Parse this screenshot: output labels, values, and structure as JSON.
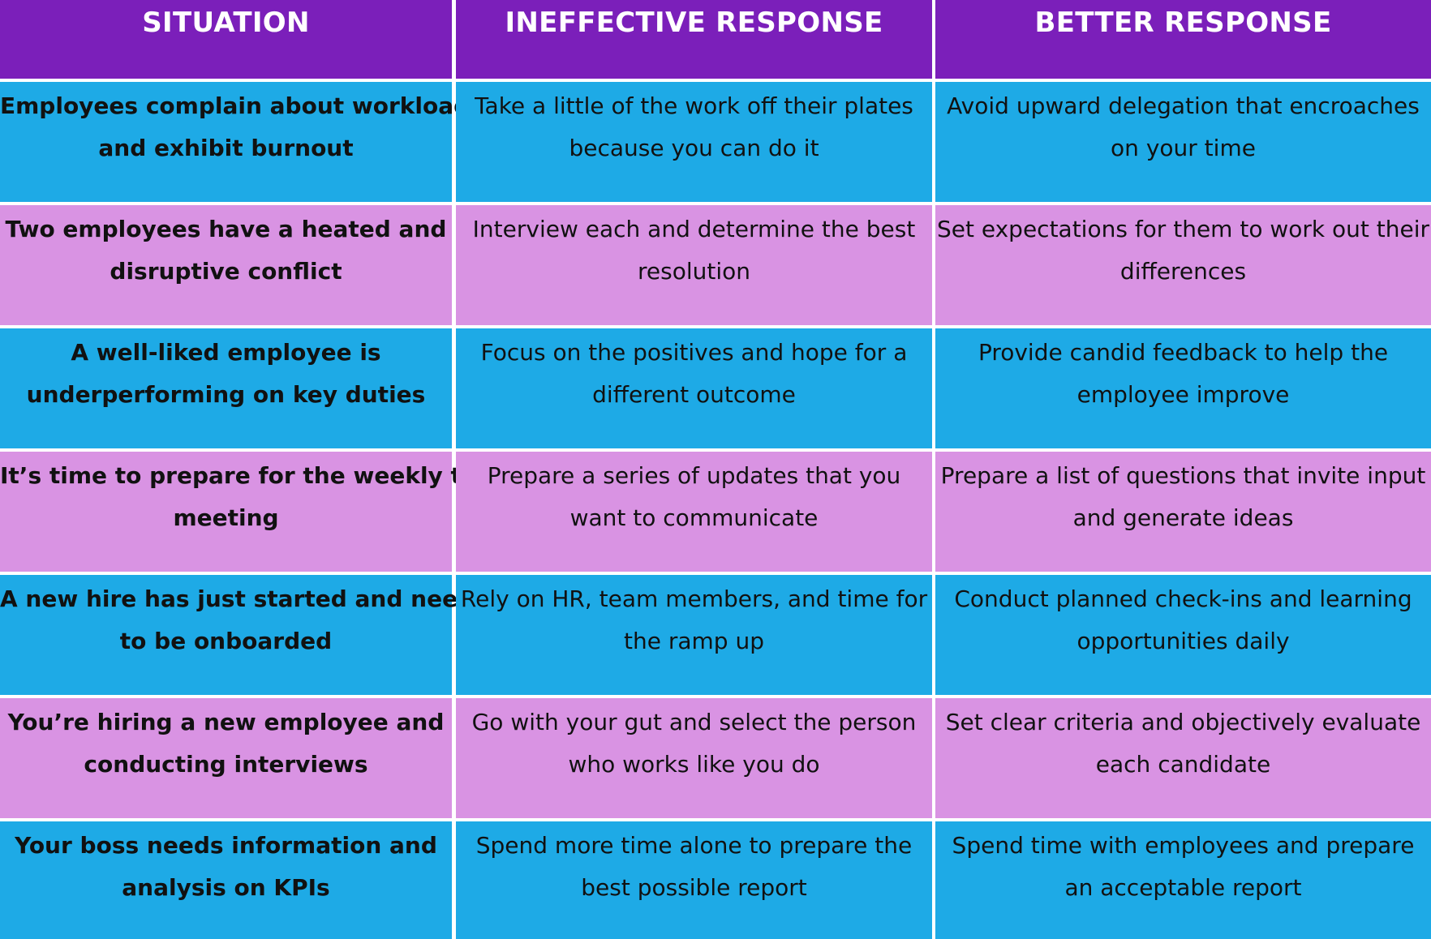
{
  "colors": {
    "header": "#7B1FBA",
    "blue": "#1EAAE6",
    "pink": "#D993E3",
    "text": "#111111",
    "separator": "#ffffff"
  },
  "header": {
    "situation": "SITUATION",
    "ineffective": "INEFFECTIVE RESPONSE",
    "better": "BETTER RESPONSE"
  },
  "rows": [
    {
      "situation": [
        "Employees complain about workload",
        "and exhibit burnout"
      ],
      "ineffective": [
        "Take a little of the work off their plates",
        "because you can do it"
      ],
      "better": [
        "Avoid upward delegation that encroaches",
        "on your time"
      ]
    },
    {
      "situation": [
        "Two employees have a heated and",
        "disruptive conflict"
      ],
      "ineffective": [
        "Interview each and determine the best",
        "resolution"
      ],
      "better": [
        "Set expectations for them to work out their",
        "differences"
      ]
    },
    {
      "situation": [
        "A well-liked employee is",
        "underperforming on key duties"
      ],
      "ineffective": [
        "Focus on the positives and hope for a",
        "different outcome"
      ],
      "better": [
        "Provide candid feedback to help the",
        "employee improve"
      ]
    },
    {
      "situation": [
        "It’s time to prepare for the weekly team",
        "meeting"
      ],
      "ineffective": [
        "Prepare a series of updates that you",
        "want to communicate"
      ],
      "better": [
        "Prepare a list of questions that invite input",
        "and generate ideas"
      ]
    },
    {
      "situation": [
        "A new hire has just started and needs",
        "to be onboarded"
      ],
      "ineffective": [
        "Rely on HR, team members, and time for",
        "the ramp up"
      ],
      "better": [
        "Conduct planned check-ins and learning",
        "opportunities daily"
      ]
    },
    {
      "situation": [
        "You’re hiring a new employee and",
        "conducting interviews"
      ],
      "ineffective": [
        "Go with your gut and select the person",
        "who works like you do"
      ],
      "better": [
        "Set clear criteria and objectively evaluate",
        "each candidate"
      ]
    },
    {
      "situation": [
        "Your boss needs information and",
        "analysis on KPIs"
      ],
      "ineffective": [
        "Spend more time alone to prepare the",
        "best possible report"
      ],
      "better": [
        "Spend time with employees and prepare",
        "an acceptable report"
      ]
    }
  ]
}
